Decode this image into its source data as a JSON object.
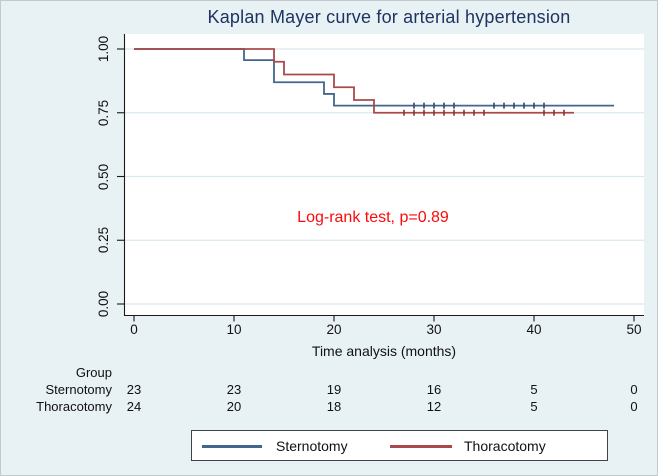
{
  "chart_data": {
    "type": "line",
    "subtype": "kaplan-meier-step",
    "title": "Kaplan Mayer curve for arterial hypertension",
    "title_color": "#1e3461",
    "xlabel": "Time analysis (months)",
    "ylabel": "",
    "xlim": [
      0,
      50
    ],
    "ylim": [
      0.0,
      1.0
    ],
    "xticks": [
      0,
      10,
      20,
      30,
      40,
      50
    ],
    "yticks": [
      {
        "value": 0.0,
        "label": "0.00"
      },
      {
        "value": 0.25,
        "label": "0.25"
      },
      {
        "value": 0.5,
        "label": "0.50"
      },
      {
        "value": 0.75,
        "label": "0.75"
      },
      {
        "value": 1.0,
        "label": "1.00"
      }
    ],
    "grid": true,
    "grid_color": "#d9e8ef",
    "plot_bg": "#ffffff",
    "outer_bg": "#e8f1f4",
    "axis_color": "#1a1a1a",
    "legend_position": "bottom",
    "annotation": {
      "text": "Log-rank test, p=0.89",
      "color": "#fa0a0a",
      "x_months": 24,
      "y_survival": 0.33
    },
    "series": [
      {
        "name": "Sternotomy",
        "color": "#41678e",
        "censor_color": "#2d4a6b",
        "steps": [
          [
            0,
            1.0
          ],
          [
            11,
            1.0
          ],
          [
            11,
            0.9565
          ],
          [
            14,
            0.9565
          ],
          [
            14,
            0.8696
          ],
          [
            19,
            0.8696
          ],
          [
            19,
            0.8238
          ],
          [
            20,
            0.8238
          ],
          [
            20,
            0.778
          ],
          [
            48,
            0.778
          ]
        ],
        "censored": [
          [
            28,
            0.778
          ],
          [
            29,
            0.778
          ],
          [
            30,
            0.778
          ],
          [
            31,
            0.778
          ],
          [
            32,
            0.778
          ],
          [
            36,
            0.778
          ],
          [
            37,
            0.778
          ],
          [
            38,
            0.778
          ],
          [
            39,
            0.778
          ],
          [
            40,
            0.778
          ],
          [
            41,
            0.778
          ]
        ]
      },
      {
        "name": "Thoracotomy",
        "color": "#a84a4a",
        "censor_color": "#8a3535",
        "steps": [
          [
            0,
            1.0
          ],
          [
            14,
            1.0
          ],
          [
            14,
            0.95
          ],
          [
            15,
            0.95
          ],
          [
            15,
            0.9
          ],
          [
            20,
            0.9
          ],
          [
            20,
            0.85
          ],
          [
            22,
            0.85
          ],
          [
            22,
            0.8
          ],
          [
            24,
            0.8
          ],
          [
            24,
            0.75
          ],
          [
            44,
            0.75
          ]
        ],
        "censored": [
          [
            27,
            0.75
          ],
          [
            28,
            0.75
          ],
          [
            29,
            0.75
          ],
          [
            30,
            0.75
          ],
          [
            31,
            0.75
          ],
          [
            32,
            0.75
          ],
          [
            33,
            0.75
          ],
          [
            34,
            0.75
          ],
          [
            35,
            0.75
          ],
          [
            41,
            0.75
          ],
          [
            42,
            0.75
          ],
          [
            43,
            0.75
          ]
        ]
      }
    ]
  },
  "risk_table": {
    "group_label": "Group",
    "time_points": [
      0,
      10,
      20,
      30,
      40,
      50
    ],
    "rows": [
      {
        "label": "Sternotomy",
        "values": [
          "23",
          "23",
          "19",
          "16",
          "5",
          "0"
        ]
      },
      {
        "label": "Thoracotomy",
        "values": [
          "24",
          "20",
          "18",
          "12",
          "5",
          "0"
        ]
      }
    ]
  },
  "legend": {
    "items": [
      {
        "label": "Sternotomy",
        "color": "#41678e"
      },
      {
        "label": "Thoracotomy",
        "color": "#a84a4a"
      }
    ]
  }
}
